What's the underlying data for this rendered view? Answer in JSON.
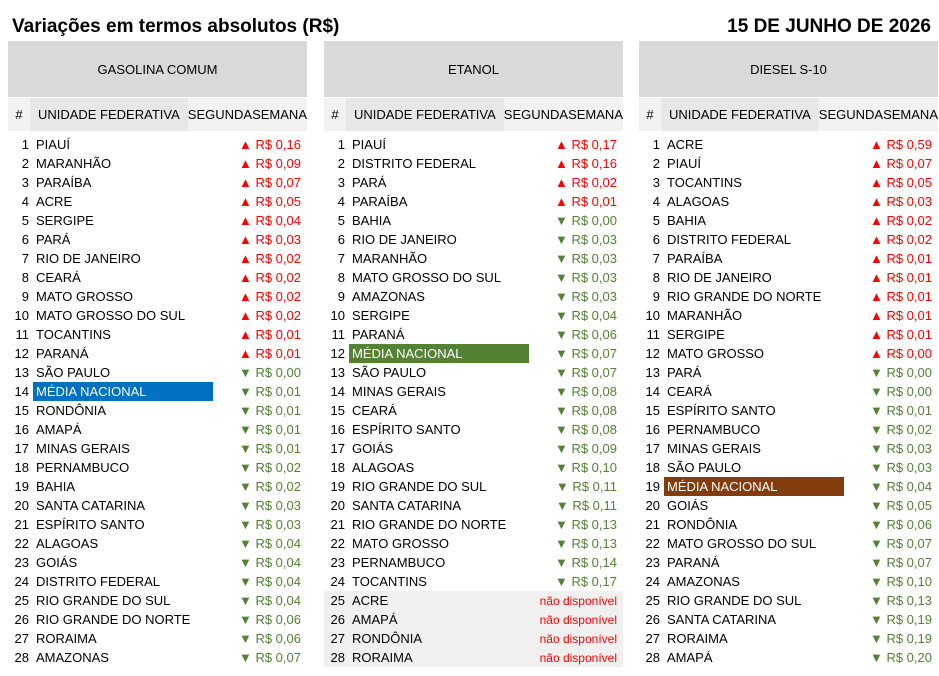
{
  "header": {
    "title": "Variações em termos absolutos (R$)",
    "date": "15 DE JUNHO DE 2026"
  },
  "columns": {
    "num": "#",
    "state": "UNIDADE FEDERATIVA",
    "variation_line1": "SEGUNDA",
    "variation_line2": "SEMANA"
  },
  "colors": {
    "up": "#ff0000",
    "down": "#548235",
    "highlight_gasolina": "#0070c0",
    "highlight_etanol": "#548235",
    "highlight_diesel": "#843c0c",
    "fuel_header_bg": "#d9d9d9"
  },
  "arrows": {
    "up": "▲",
    "down": "▼"
  },
  "panels": [
    {
      "fuel": "GASOLINA COMUM",
      "highlight_color": "#0070c0",
      "rows": [
        {
          "n": "1",
          "state": "PIAUÍ",
          "dir": "up",
          "val": "R$ 0,16"
        },
        {
          "n": "2",
          "state": "MARANHÃO",
          "dir": "up",
          "val": "R$ 0,09"
        },
        {
          "n": "3",
          "state": "PARAÍBA",
          "dir": "up",
          "val": "R$ 0,07"
        },
        {
          "n": "4",
          "state": "ACRE",
          "dir": "up",
          "val": "R$ 0,05"
        },
        {
          "n": "5",
          "state": "SERGIPE",
          "dir": "up",
          "val": "R$ 0,04"
        },
        {
          "n": "6",
          "state": "PARÁ",
          "dir": "up",
          "val": "R$ 0,03"
        },
        {
          "n": "7",
          "state": "RIO DE JANEIRO",
          "dir": "up",
          "val": "R$ 0,02"
        },
        {
          "n": "8",
          "state": "CEARÁ",
          "dir": "up",
          "val": "R$ 0,02"
        },
        {
          "n": "9",
          "state": "MATO GROSSO",
          "dir": "up",
          "val": "R$ 0,02"
        },
        {
          "n": "10",
          "state": "MATO GROSSO DO SUL",
          "dir": "up",
          "val": "R$ 0,02"
        },
        {
          "n": "11",
          "state": "TOCANTINS",
          "dir": "up",
          "val": "R$ 0,01"
        },
        {
          "n": "12",
          "state": "PARANÁ",
          "dir": "up",
          "val": "R$ 0,01"
        },
        {
          "n": "13",
          "state": "SÃO PAULO",
          "dir": "down",
          "val": "R$ 0,00"
        },
        {
          "n": "14",
          "state": "MÉDIA NACIONAL",
          "dir": "down",
          "val": "R$ 0,01",
          "avg": true
        },
        {
          "n": "15",
          "state": "RONDÔNIA",
          "dir": "down",
          "val": "R$ 0,01"
        },
        {
          "n": "16",
          "state": "AMAPÁ",
          "dir": "down",
          "val": "R$ 0,01"
        },
        {
          "n": "17",
          "state": "MINAS GERAIS",
          "dir": "down",
          "val": "R$ 0,01"
        },
        {
          "n": "18",
          "state": "PERNAMBUCO",
          "dir": "down",
          "val": "R$ 0,02"
        },
        {
          "n": "19",
          "state": "BAHIA",
          "dir": "down",
          "val": "R$ 0,02"
        },
        {
          "n": "20",
          "state": "SANTA CATARINA",
          "dir": "down",
          "val": "R$ 0,03"
        },
        {
          "n": "21",
          "state": "ESPÍRITO SANTO",
          "dir": "down",
          "val": "R$ 0,03"
        },
        {
          "n": "22",
          "state": "ALAGOAS",
          "dir": "down",
          "val": "R$ 0,04"
        },
        {
          "n": "23",
          "state": "GOIÁS",
          "dir": "down",
          "val": "R$ 0,04"
        },
        {
          "n": "24",
          "state": "DISTRITO FEDERAL",
          "dir": "down",
          "val": "R$ 0,04"
        },
        {
          "n": "25",
          "state": "RIO GRANDE DO SUL",
          "dir": "down",
          "val": "R$ 0,04"
        },
        {
          "n": "26",
          "state": "RIO GRANDE DO NORTE",
          "dir": "down",
          "val": "R$ 0,06"
        },
        {
          "n": "27",
          "state": "RORAIMA",
          "dir": "down",
          "val": "R$ 0,06"
        },
        {
          "n": "28",
          "state": "AMAZONAS",
          "dir": "down",
          "val": "R$ 0,07"
        }
      ]
    },
    {
      "fuel": "ETANOL",
      "highlight_color": "#548235",
      "rows": [
        {
          "n": "1",
          "state": "PIAUÍ",
          "dir": "up",
          "val": "R$ 0,17"
        },
        {
          "n": "2",
          "state": "DISTRITO FEDERAL",
          "dir": "up",
          "val": "R$ 0,16"
        },
        {
          "n": "3",
          "state": "PARÁ",
          "dir": "up",
          "val": "R$ 0,02"
        },
        {
          "n": "4",
          "state": "PARAÍBA",
          "dir": "up",
          "val": "R$ 0,01"
        },
        {
          "n": "5",
          "state": "BAHIA",
          "dir": "down",
          "val": "R$ 0,00"
        },
        {
          "n": "6",
          "state": "RIO DE JANEIRO",
          "dir": "down",
          "val": "R$ 0,03"
        },
        {
          "n": "7",
          "state": "MARANHÃO",
          "dir": "down",
          "val": "R$ 0,03"
        },
        {
          "n": "8",
          "state": "MATO GROSSO DO SUL",
          "dir": "down",
          "val": "R$ 0,03"
        },
        {
          "n": "9",
          "state": "AMAZONAS",
          "dir": "down",
          "val": "R$ 0,03"
        },
        {
          "n": "10",
          "state": "SERGIPE",
          "dir": "down",
          "val": "R$ 0,04"
        },
        {
          "n": "11",
          "state": "PARANÁ",
          "dir": "down",
          "val": "R$ 0,06"
        },
        {
          "n": "12",
          "state": "MÉDIA NACIONAL",
          "dir": "down",
          "val": "R$ 0,07",
          "avg": true
        },
        {
          "n": "13",
          "state": "SÃO PAULO",
          "dir": "down",
          "val": "R$ 0,07"
        },
        {
          "n": "14",
          "state": "MINAS GERAIS",
          "dir": "down",
          "val": "R$ 0,08"
        },
        {
          "n": "15",
          "state": "CEARÁ",
          "dir": "down",
          "val": "R$ 0,08"
        },
        {
          "n": "16",
          "state": "ESPÍRITO SANTO",
          "dir": "down",
          "val": "R$ 0,08"
        },
        {
          "n": "17",
          "state": "GOIÁS",
          "dir": "down",
          "val": "R$ 0,09"
        },
        {
          "n": "18",
          "state": "ALAGOAS",
          "dir": "down",
          "val": "R$ 0,10"
        },
        {
          "n": "19",
          "state": "RIO GRANDE DO SUL",
          "dir": "down",
          "val": "R$ 0,11"
        },
        {
          "n": "20",
          "state": "SANTA CATARINA",
          "dir": "down",
          "val": "R$ 0,11"
        },
        {
          "n": "21",
          "state": "RIO GRANDE DO NORTE",
          "dir": "down",
          "val": "R$ 0,13"
        },
        {
          "n": "22",
          "state": "MATO GROSSO",
          "dir": "down",
          "val": "R$ 0,13"
        },
        {
          "n": "23",
          "state": "PERNAMBUCO",
          "dir": "down",
          "val": "R$ 0,14"
        },
        {
          "n": "24",
          "state": "TOCANTINS",
          "dir": "down",
          "val": "R$ 0,17"
        },
        {
          "n": "25",
          "state": "ACRE",
          "dir": "na",
          "val": "não disponível"
        },
        {
          "n": "26",
          "state": "AMAPÁ",
          "dir": "na",
          "val": "não disponível"
        },
        {
          "n": "27",
          "state": "RONDÔNIA",
          "dir": "na",
          "val": "não disponível"
        },
        {
          "n": "28",
          "state": "RORAIMA",
          "dir": "na",
          "val": "não disponível"
        }
      ]
    },
    {
      "fuel": "DIESEL S-10",
      "highlight_color": "#843c0c",
      "rows": [
        {
          "n": "1",
          "state": "ACRE",
          "dir": "up",
          "val": "R$ 0,59"
        },
        {
          "n": "2",
          "state": "PIAUÍ",
          "dir": "up",
          "val": "R$ 0,07"
        },
        {
          "n": "3",
          "state": "TOCANTINS",
          "dir": "up",
          "val": "R$ 0,05"
        },
        {
          "n": "4",
          "state": "ALAGOAS",
          "dir": "up",
          "val": "R$ 0,03"
        },
        {
          "n": "5",
          "state": "BAHIA",
          "dir": "up",
          "val": "R$ 0,02"
        },
        {
          "n": "6",
          "state": "DISTRITO FEDERAL",
          "dir": "up",
          "val": "R$ 0,02"
        },
        {
          "n": "7",
          "state": "PARAÍBA",
          "dir": "up",
          "val": "R$ 0,01"
        },
        {
          "n": "8",
          "state": "RIO DE JANEIRO",
          "dir": "up",
          "val": "R$ 0,01"
        },
        {
          "n": "9",
          "state": "RIO GRANDE DO NORTE",
          "dir": "up",
          "val": "R$ 0,01"
        },
        {
          "n": "10",
          "state": "MARANHÃO",
          "dir": "up",
          "val": "R$ 0,01"
        },
        {
          "n": "11",
          "state": "SERGIPE",
          "dir": "up",
          "val": "R$ 0,01"
        },
        {
          "n": "12",
          "state": "MATO GROSSO",
          "dir": "up",
          "val": "R$ 0,00"
        },
        {
          "n": "13",
          "state": "PARÁ",
          "dir": "down",
          "val": "R$ 0,00"
        },
        {
          "n": "14",
          "state": "CEARÁ",
          "dir": "down",
          "val": "R$ 0,00"
        },
        {
          "n": "15",
          "state": "ESPÍRITO SANTO",
          "dir": "down",
          "val": "R$ 0,01"
        },
        {
          "n": "16",
          "state": "PERNAMBUCO",
          "dir": "down",
          "val": "R$ 0,02"
        },
        {
          "n": "17",
          "state": "MINAS GERAIS",
          "dir": "down",
          "val": "R$ 0,03"
        },
        {
          "n": "18",
          "state": "SÃO PAULO",
          "dir": "down",
          "val": "R$ 0,03"
        },
        {
          "n": "19",
          "state": "MÉDIA NACIONAL",
          "dir": "down",
          "val": "R$ 0,04",
          "avg": true
        },
        {
          "n": "20",
          "state": "GOIÁS",
          "dir": "down",
          "val": "R$ 0,05"
        },
        {
          "n": "21",
          "state": "RONDÔNIA",
          "dir": "down",
          "val": "R$ 0,06"
        },
        {
          "n": "22",
          "state": "MATO GROSSO DO SUL",
          "dir": "down",
          "val": "R$ 0,07"
        },
        {
          "n": "23",
          "state": "PARANÁ",
          "dir": "down",
          "val": "R$ 0,07"
        },
        {
          "n": "24",
          "state": "AMAZONAS",
          "dir": "down",
          "val": "R$ 0,10"
        },
        {
          "n": "25",
          "state": "RIO GRANDE DO SUL",
          "dir": "down",
          "val": "R$ 0,13"
        },
        {
          "n": "26",
          "state": "SANTA CATARINA",
          "dir": "down",
          "val": "R$ 0,19"
        },
        {
          "n": "27",
          "state": "RORAIMA",
          "dir": "down",
          "val": "R$ 0,19"
        },
        {
          "n": "28",
          "state": "AMAPÁ",
          "dir": "down",
          "val": "R$ 0,20"
        }
      ]
    }
  ]
}
